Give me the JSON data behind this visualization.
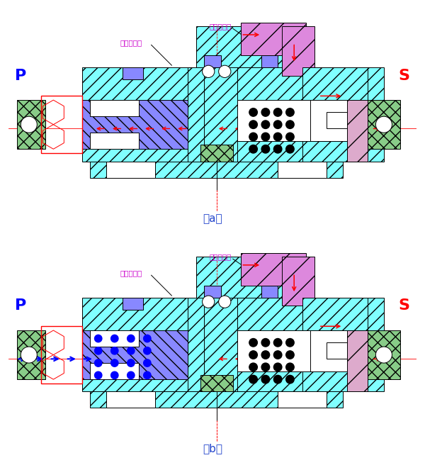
{
  "fig_width": 6.0,
  "fig_height": 6.63,
  "dpi": 100,
  "bg_color": "#ffffff",
  "cyan": "#80ffff",
  "blue_hatch": "#8888ff",
  "purple": "#dd88dd",
  "green": "#88cc88",
  "red": "#ff0000",
  "blue": "#0000ff",
  "magenta": "#ff00ff",
  "label_a": "（a）",
  "label_b": "（b）",
  "label_P": "P",
  "label_S": "S",
  "label_odd": "奇数档气管",
  "label_even": "偶数档气管"
}
